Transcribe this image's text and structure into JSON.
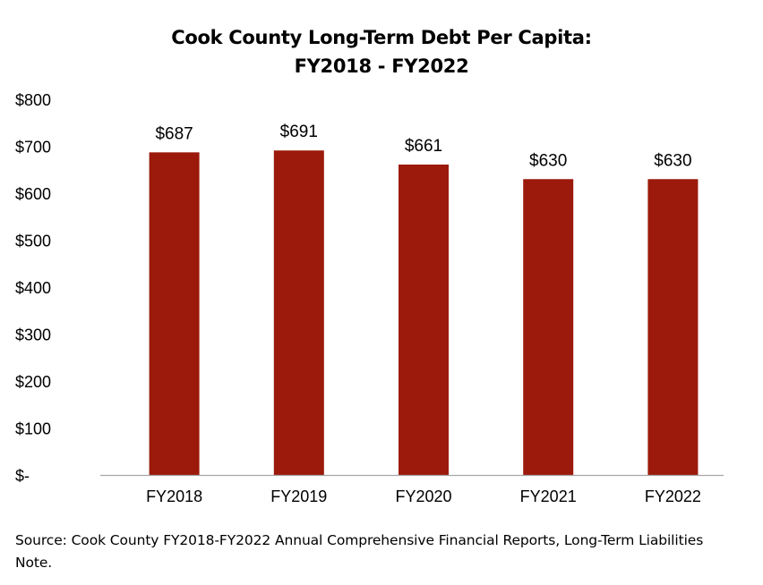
{
  "chart_data": {
    "type": "bar",
    "title_line1": "Cook County Long-Term Debt Per Capita:",
    "title_line2": "FY2018 - FY2022",
    "categories": [
      "FY2018",
      "FY2019",
      "FY2020",
      "FY2021",
      "FY2022"
    ],
    "values": [
      687,
      691,
      661,
      630,
      630
    ],
    "data_labels": [
      "$687",
      "$691",
      "$661",
      "$630",
      "$630"
    ],
    "y_ticks": [
      0,
      100,
      200,
      300,
      400,
      500,
      600,
      700,
      800
    ],
    "y_tick_labels": [
      "$-",
      "$100",
      "$200",
      "$300",
      "$400",
      "$500",
      "$600",
      "$700",
      "$800"
    ],
    "ylim": [
      0,
      800
    ],
    "grid": false,
    "legend": "none",
    "bar_color": "#9b1a0b",
    "axis_color": "#a6a6a6"
  },
  "source": "Source: Cook County FY2018-FY2022 Annual Comprehensive Financial Reports, Long-Term Liabilities Note."
}
